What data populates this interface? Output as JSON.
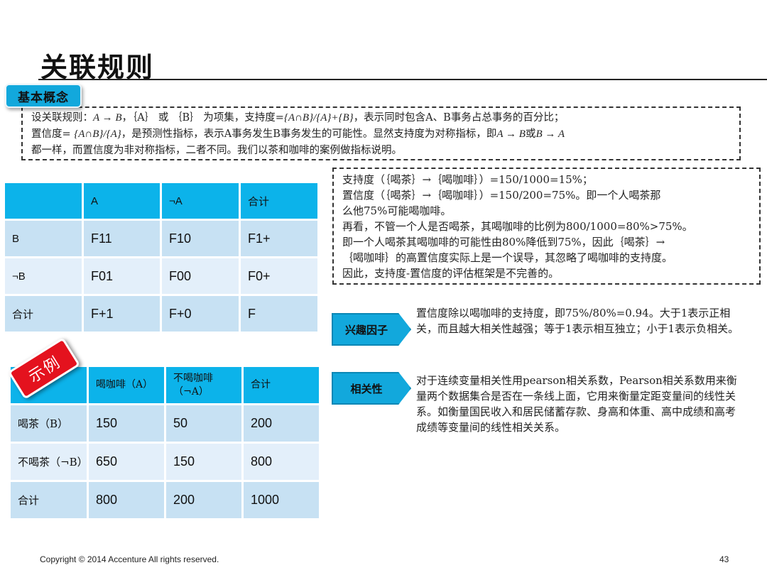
{
  "slide": {
    "title": "关联规则",
    "page_number": "43",
    "copyright": "Copyright © 2014  Accenture  All rights reserved."
  },
  "basic_concept": {
    "tag_label": "基本概念",
    "line1_prefix": "设关联规则：",
    "line1_rule": "A → B",
    "line1_mid": "，｛A｝ 或 ｛B｝ 为项集，支持度=",
    "line1_formula": "{A∩B}/{A}+{B}",
    "line1_suffix": "，表示同时包含A、B事务占总事务的百分比；",
    "line2_prefix": "置信度= ",
    "line2_formula": "{A∩B}/{A}",
    "line2_mid": "，是预测性指标，表示A事务发生B事务发生的可能性。显然支持度为对称指标，即",
    "line2_rule1": "A → B",
    "line2_or": "或",
    "line2_rule2": "B → A",
    "line3": "都一样，而置信度为非对称指标，二者不同。我们以茶和咖啡的案例做指标说明。"
  },
  "notation_table": {
    "headers": [
      "",
      "A",
      "¬A",
      "合计"
    ],
    "rows": [
      [
        "B",
        "F11",
        "F10",
        "F1+"
      ],
      [
        "¬B",
        "F01",
        "F00",
        "F0+"
      ],
      [
        "合计",
        "F+1",
        "F+0",
        "F"
      ]
    ]
  },
  "example_table": {
    "badge_label": "示例",
    "headers": [
      "",
      "喝咖啡（A）",
      "不喝咖啡（¬A）",
      "合计"
    ],
    "rows": [
      [
        "喝茶（B）",
        "150",
        "50",
        "200"
      ],
      [
        "不喝茶（¬B）",
        "650",
        "150",
        "800"
      ],
      [
        "合计",
        "800",
        "200",
        "1000"
      ]
    ]
  },
  "calculation": {
    "lines": [
      "支持度（｛喝茶｝→｛喝咖啡｝）=150/1000=15%；",
      "置信度（｛喝茶｝→｛喝咖啡｝）=150/200=75%。即一个人喝茶那",
      "么他75%可能喝咖啡。",
      "再看，不管一个人是否喝茶，其喝咖啡的比例为800/1000=80%>75%。",
      "即一个人喝茶其喝咖啡的可能性由80%降低到75%，因此｛喝茶｝→",
      "｛喝咖啡｝的高置信度实际上是一个误导，其忽略了喝咖啡的支持度。",
      "因此，支持度-置信度的评估框架是不完善的。"
    ]
  },
  "interest_factor": {
    "tag_label": "兴趣因子",
    "description": "置信度除以喝咖啡的支持度，即75%/80%=0.94。大于1表示正相关，而且越大相关性越强；等于1表示相互独立；小于1表示负相关。"
  },
  "correlation": {
    "tag_label": "相关性",
    "description": "对于连续变量相关性用pearson相关系数，Pearson相关系数用来衡量两个数据集合是否在一条线上面，它用来衡量定距变量间的线性关系。如衡量国民收入和居民储蓄存款、身高和体重、高中成绩和高考成绩等变量间的线性相关关系。"
  },
  "colors": {
    "accent_blue": "#12a8dc",
    "table_header": "#0cb3ea",
    "row_dark": "#c7e1f3",
    "row_light": "#e3effa",
    "example_red": "#e4121e"
  }
}
